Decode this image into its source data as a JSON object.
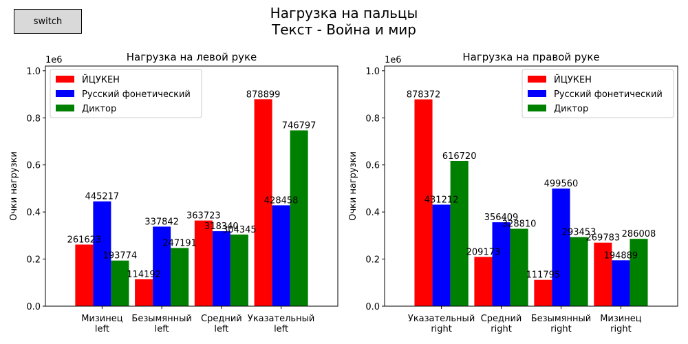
{
  "ui": {
    "switch_label": "switch"
  },
  "suptitle": [
    "Нагрузка на пальцы",
    "Текст - Война и мир"
  ],
  "chart_data": [
    {
      "type": "bar",
      "title": "Нагрузка на левой руке",
      "ylabel": "Очки нагрузки",
      "y_offset_label": "1e6",
      "ylim": [
        0,
        1020000
      ],
      "yticks": [
        0,
        200000,
        400000,
        600000,
        800000,
        1000000
      ],
      "ytick_labels": [
        "0.0",
        "0.2",
        "0.4",
        "0.6",
        "0.8",
        "1.0"
      ],
      "categories": [
        [
          "Мизинец",
          "left"
        ],
        [
          "Безымянный",
          "left"
        ],
        [
          "Средний",
          "left"
        ],
        [
          "Указательный",
          "left"
        ]
      ],
      "legend_position": "top-left",
      "series": [
        {
          "name": "ЙЦУКЕН",
          "color": "#ff0000",
          "values": [
            261623,
            114192,
            363723,
            878899
          ]
        },
        {
          "name": "Русский фонетический",
          "color": "#0000ff",
          "values": [
            445217,
            337842,
            318340,
            428458
          ]
        },
        {
          "name": "Диктор",
          "color": "#008000",
          "values": [
            193774,
            247191,
            304345,
            746797
          ]
        }
      ]
    },
    {
      "type": "bar",
      "title": "Нагрузка на правой руке",
      "ylabel": "Очки нагрузки",
      "y_offset_label": "1e6",
      "ylim": [
        0,
        1020000
      ],
      "yticks": [
        0,
        200000,
        400000,
        600000,
        800000,
        1000000
      ],
      "ytick_labels": [
        "0.0",
        "0.2",
        "0.4",
        "0.6",
        "0.8",
        "1.0"
      ],
      "categories": [
        [
          "Указательный",
          "right"
        ],
        [
          "Средний",
          "right"
        ],
        [
          "Безымянный",
          "right"
        ],
        [
          "Мизинец",
          "right"
        ]
      ],
      "legend_position": "top-right",
      "series": [
        {
          "name": "ЙЦУКЕН",
          "color": "#ff0000",
          "values": [
            878372,
            209173,
            111795,
            269783
          ]
        },
        {
          "name": "Русский фонетический",
          "color": "#0000ff",
          "values": [
            431212,
            356409,
            499560,
            194889
          ]
        },
        {
          "name": "Диктор",
          "color": "#008000",
          "values": [
            616720,
            328810,
            293453,
            286008
          ]
        }
      ]
    }
  ]
}
